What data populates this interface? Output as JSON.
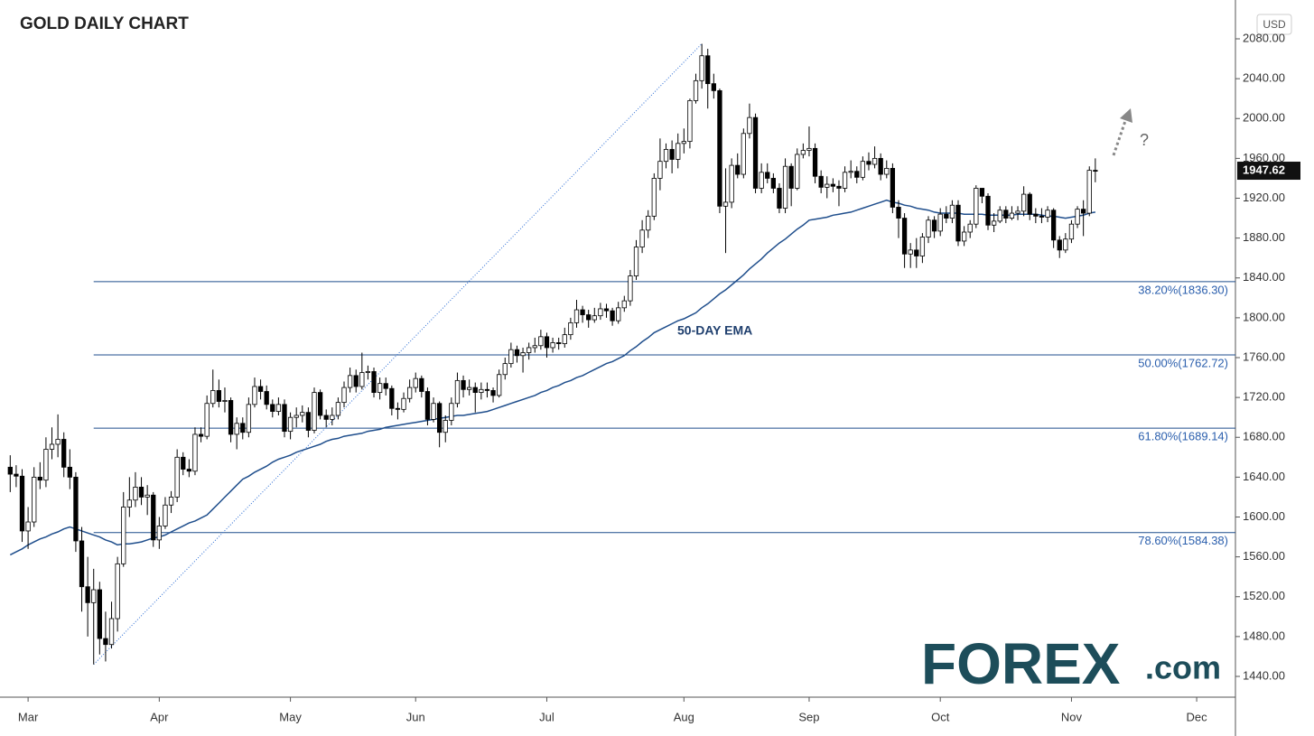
{
  "chart_data": {
    "type": "candlestick",
    "title": "GOLD DAILY CHART",
    "currency": "USD",
    "categories": [
      null,
      null,
      null,
      "Mar",
      null,
      null,
      null,
      null,
      null,
      null,
      null,
      null,
      null,
      null,
      null,
      null,
      null,
      null,
      null,
      null,
      null,
      null,
      null,
      null,
      null,
      "Apr",
      null,
      null,
      null,
      null,
      null,
      null,
      null,
      null,
      null,
      null,
      null,
      null,
      null,
      null,
      null,
      null,
      null,
      null,
      null,
      null,
      null,
      "May",
      null,
      null,
      null,
      null,
      null,
      null,
      null,
      null,
      null,
      null,
      null,
      null,
      null,
      null,
      null,
      null,
      null,
      null,
      null,
      null,
      "Jun",
      null,
      null,
      null,
      null,
      null,
      null,
      null,
      null,
      null,
      null,
      null,
      null,
      null,
      null,
      null,
      null,
      null,
      null,
      null,
      null,
      null,
      "Jul",
      null,
      null,
      null,
      null,
      null,
      null,
      null,
      null,
      null,
      null,
      null,
      null,
      null,
      null,
      null,
      null,
      null,
      null,
      null,
      null,
      null,
      null,
      "Aug",
      null,
      null,
      null,
      null,
      null,
      null,
      null,
      null,
      null,
      null,
      null,
      null,
      null,
      null,
      null,
      null,
      null,
      null,
      null,
      null,
      "Sep",
      null,
      null,
      null,
      null,
      null,
      null,
      null,
      null,
      null,
      null,
      null,
      null,
      null,
      null,
      null,
      null,
      null,
      null,
      null,
      null,
      null,
      "Oct",
      null,
      null,
      null,
      null,
      null,
      null,
      null,
      null,
      null,
      null,
      null,
      null,
      null,
      null,
      null,
      null,
      null,
      null,
      null,
      null,
      null,
      "Nov",
      null,
      null,
      null,
      null,
      null,
      null,
      null,
      null,
      null,
      null,
      null,
      null,
      null,
      null,
      null,
      null,
      null,
      null,
      null,
      null,
      "Dec",
      null,
      null,
      null,
      null,
      null,
      null
    ],
    "open": [
      1650,
      1643,
      1641,
      1586,
      1595,
      1640,
      1637,
      1668,
      1673,
      1678,
      1650,
      1640,
      1576,
      1530,
      1514,
      1527,
      1478,
      1472,
      1498,
      1553,
      1610,
      1617,
      1630,
      1620,
      1622,
      1577,
      1591,
      1612,
      1620,
      1660,
      1648,
      1646,
      1683,
      1681,
      1714,
      1727,
      1716,
      1717,
      1683,
      1694,
      1685,
      1713,
      1731,
      1726,
      1713,
      1706,
      1713,
      1686,
      1700,
      1702,
      1705,
      1687,
      1725,
      1702,
      1698,
      1702,
      1715,
      1730,
      1742,
      1731,
      1745,
      1746,
      1725,
      1734,
      1729,
      1709,
      1708,
      1719,
      1730,
      1739,
      1726,
      1698,
      1714,
      1685,
      1697,
      1714,
      1737,
      1728,
      1730,
      1725,
      1728,
      1727,
      1722,
      1743,
      1754,
      1768,
      1762,
      1765,
      1770,
      1772,
      1781,
      1770,
      1775,
      1774,
      1783,
      1795,
      1808,
      1803,
      1798,
      1802,
      1809,
      1807,
      1797,
      1810,
      1817,
      1842,
      1871,
      1888,
      1902,
      1940,
      1957,
      1969,
      1959,
      1975,
      1977,
      2018,
      2038,
      2063,
      2035,
      2028,
      1912,
      1916,
      1953,
      1944,
      1985,
      2001,
      1930,
      1946,
      1940,
      1930,
      1910,
      1952,
      1930,
      1964,
      1968,
      1970,
      1942,
      1931,
      1934,
      1932,
      1930,
      1946,
      1947,
      1941,
      1957,
      1954,
      1960,
      1944,
      1950,
      1911,
      1900,
      1864,
      1868,
      1862,
      1881,
      1898,
      1887,
      1904,
      1900,
      1913,
      1877,
      1886,
      1894,
      1930,
      1922,
      1893,
      1897,
      1908,
      1900,
      1905,
      1907,
      1924,
      1904,
      1902,
      1901,
      1908,
      1878,
      1868,
      1879,
      1894,
      1909,
      1905,
      1948,
      null,
      null,
      null,
      null,
      null,
      null,
      null,
      null,
      null,
      null,
      null,
      null,
      null,
      null,
      null,
      null,
      null,
      null,
      null,
      null,
      null,
      null,
      null
    ],
    "high": [
      1662,
      1652,
      1648,
      1610,
      1650,
      1655,
      1680,
      1690,
      1703,
      1685,
      1668,
      1645,
      1590,
      1560,
      1548,
      1535,
      1505,
      1515,
      1560,
      1625,
      1640,
      1645,
      1640,
      1632,
      1625,
      1600,
      1620,
      1626,
      1668,
      1665,
      1658,
      1690,
      1690,
      1722,
      1748,
      1738,
      1730,
      1720,
      1700,
      1700,
      1720,
      1740,
      1738,
      1732,
      1718,
      1720,
      1718,
      1705,
      1710,
      1712,
      1710,
      1730,
      1728,
      1708,
      1710,
      1720,
      1736,
      1750,
      1748,
      1765,
      1752,
      1750,
      1740,
      1740,
      1732,
      1715,
      1725,
      1738,
      1745,
      1742,
      1730,
      1720,
      1716,
      1702,
      1720,
      1745,
      1742,
      1738,
      1735,
      1735,
      1735,
      1730,
      1748,
      1760,
      1775,
      1772,
      1770,
      1775,
      1780,
      1788,
      1785,
      1780,
      1780,
      1790,
      1800,
      1818,
      1812,
      1808,
      1810,
      1815,
      1814,
      1810,
      1816,
      1822,
      1848,
      1878,
      1898,
      1908,
      1945,
      1980,
      1975,
      1978,
      1985,
      1990,
      2020,
      2045,
      2075,
      2070,
      2045,
      2030,
      1950,
      1960,
      1965,
      1990,
      2015,
      2005,
      1955,
      1955,
      1945,
      1935,
      1960,
      1955,
      1970,
      1975,
      1992,
      1975,
      1948,
      1942,
      1940,
      1938,
      1952,
      1958,
      1952,
      1962,
      1966,
      1972,
      1965,
      1958,
      1955,
      1918,
      1905,
      1875,
      1880,
      1885,
      1902,
      1902,
      1910,
      1912,
      1918,
      1918,
      1892,
      1898,
      1933,
      1930,
      1925,
      1905,
      1912,
      1912,
      1912,
      1912,
      1932,
      1926,
      1910,
      1910,
      1912,
      1910,
      1882,
      1885,
      1898,
      1912,
      1918,
      1952,
      1960,
      null,
      null,
      null,
      null,
      null,
      null,
      null,
      null,
      null,
      null,
      null,
      null,
      null,
      null,
      null,
      null,
      null,
      null,
      null,
      null,
      null,
      null,
      null
    ],
    "low": [
      1625,
      1630,
      1575,
      1568,
      1590,
      1628,
      1630,
      1658,
      1660,
      1640,
      1628,
      1565,
      1505,
      1480,
      1452,
      1462,
      1455,
      1468,
      1485,
      1550,
      1600,
      1610,
      1612,
      1602,
      1570,
      1568,
      1588,
      1604,
      1615,
      1642,
      1640,
      1642,
      1675,
      1678,
      1710,
      1710,
      1705,
      1675,
      1668,
      1678,
      1680,
      1710,
      1718,
      1708,
      1700,
      1702,
      1680,
      1678,
      1690,
      1695,
      1680,
      1684,
      1698,
      1690,
      1692,
      1698,
      1710,
      1725,
      1725,
      1728,
      1738,
      1720,
      1718,
      1722,
      1702,
      1698,
      1705,
      1715,
      1725,
      1720,
      1692,
      1695,
      1670,
      1675,
      1692,
      1710,
      1720,
      1722,
      1705,
      1718,
      1720,
      1715,
      1720,
      1738,
      1750,
      1755,
      1745,
      1758,
      1765,
      1768,
      1760,
      1765,
      1768,
      1770,
      1778,
      1790,
      1795,
      1790,
      1795,
      1798,
      1800,
      1792,
      1794,
      1806,
      1812,
      1838,
      1865,
      1880,
      1898,
      1928,
      1950,
      1945,
      1950,
      1965,
      1970,
      2015,
      2030,
      2010,
      2020,
      1905,
      1865,
      1910,
      1940,
      1940,
      1980,
      1925,
      1925,
      1935,
      1925,
      1905,
      1905,
      1912,
      1928,
      1960,
      1962,
      1935,
      1925,
      1920,
      1926,
      1912,
      1926,
      1940,
      1935,
      1938,
      1948,
      1950,
      1938,
      1940,
      1905,
      1880,
      1850,
      1850,
      1850,
      1855,
      1875,
      1880,
      1882,
      1895,
      1895,
      1872,
      1872,
      1880,
      1890,
      1915,
      1888,
      1886,
      1895,
      1895,
      1898,
      1898,
      1902,
      1898,
      1895,
      1895,
      1896,
      1870,
      1860,
      1865,
      1875,
      1890,
      1882,
      1902,
      1936,
      null,
      null,
      null,
      null,
      null,
      null,
      null,
      null,
      null,
      null,
      null,
      null,
      null,
      null,
      null,
      null,
      null,
      null,
      null,
      null,
      null,
      null,
      null
    ],
    "close": [
      1643,
      1641,
      1586,
      1595,
      1640,
      1637,
      1668,
      1673,
      1678,
      1650,
      1640,
      1576,
      1530,
      1514,
      1527,
      1478,
      1472,
      1498,
      1553,
      1610,
      1617,
      1630,
      1620,
      1622,
      1577,
      1591,
      1612,
      1620,
      1660,
      1648,
      1646,
      1683,
      1681,
      1714,
      1727,
      1716,
      1717,
      1683,
      1694,
      1685,
      1713,
      1731,
      1726,
      1713,
      1706,
      1713,
      1686,
      1700,
      1702,
      1705,
      1687,
      1725,
      1702,
      1698,
      1702,
      1715,
      1730,
      1742,
      1731,
      1745,
      1746,
      1725,
      1734,
      1729,
      1709,
      1708,
      1719,
      1730,
      1739,
      1726,
      1698,
      1714,
      1685,
      1697,
      1714,
      1737,
      1728,
      1730,
      1725,
      1728,
      1727,
      1722,
      1743,
      1754,
      1768,
      1762,
      1765,
      1770,
      1772,
      1781,
      1770,
      1775,
      1774,
      1783,
      1795,
      1808,
      1803,
      1798,
      1802,
      1809,
      1807,
      1797,
      1810,
      1817,
      1842,
      1871,
      1888,
      1902,
      1940,
      1957,
      1969,
      1959,
      1975,
      1977,
      2018,
      2038,
      2063,
      2035,
      2028,
      1912,
      1916,
      1953,
      1944,
      1985,
      2001,
      1930,
      1946,
      1940,
      1930,
      1910,
      1952,
      1930,
      1964,
      1968,
      1970,
      1942,
      1931,
      1934,
      1932,
      1930,
      1946,
      1947,
      1941,
      1957,
      1954,
      1960,
      1944,
      1950,
      1911,
      1900,
      1864,
      1868,
      1862,
      1881,
      1898,
      1887,
      1904,
      1900,
      1913,
      1877,
      1886,
      1894,
      1930,
      1922,
      1893,
      1897,
      1908,
      1900,
      1905,
      1907,
      1924,
      1904,
      1902,
      1901,
      1908,
      1878,
      1868,
      1879,
      1894,
      1909,
      1905,
      1948,
      1947.62,
      null,
      null,
      null,
      null,
      null,
      null,
      null,
      null,
      null,
      null,
      null,
      null,
      null,
      null,
      null,
      null,
      null,
      null,
      null,
      null,
      null,
      null,
      null
    ],
    "up_color": "#ffffff",
    "down_color": "#000000",
    "ema": {
      "name": "50-DAY EMA",
      "color": "#1f4e8c",
      "values": [
        1562,
        1565,
        1568,
        1572,
        1575,
        1578,
        1580,
        1583,
        1585,
        1588,
        1590,
        1588,
        1586,
        1584,
        1582,
        1580,
        1577,
        1575,
        1572,
        1573,
        1573,
        1574,
        1575,
        1577,
        1579,
        1580,
        1582,
        1585,
        1588,
        1591,
        1594,
        1596,
        1599,
        1602,
        1608,
        1614,
        1620,
        1626,
        1632,
        1638,
        1641,
        1645,
        1648,
        1651,
        1655,
        1658,
        1660,
        1662,
        1665,
        1667,
        1669,
        1671,
        1673,
        1676,
        1678,
        1679,
        1681,
        1682,
        1683,
        1684,
        1686,
        1687,
        1688,
        1690,
        1691,
        1692,
        1693,
        1694,
        1695,
        1696,
        1697,
        1698,
        1699,
        1700,
        1701,
        1702,
        1702,
        1703,
        1704,
        1705,
        1706,
        1708,
        1710,
        1712,
        1714,
        1716,
        1718,
        1720,
        1722,
        1725,
        1727,
        1730,
        1732,
        1735,
        1737,
        1740,
        1742,
        1745,
        1748,
        1751,
        1754,
        1756,
        1759,
        1762,
        1767,
        1771,
        1776,
        1780,
        1785,
        1788,
        1791,
        1794,
        1797,
        1799,
        1802,
        1805,
        1810,
        1814,
        1819,
        1824,
        1828,
        1833,
        1838,
        1843,
        1849,
        1854,
        1859,
        1865,
        1870,
        1875,
        1879,
        1884,
        1889,
        1893,
        1898,
        1899,
        1900,
        1901,
        1903,
        1904,
        1905,
        1906,
        1908,
        1910,
        1912,
        1914,
        1916,
        1918,
        1916,
        1915,
        1913,
        1912,
        1910,
        1909,
        1908,
        1906,
        1905,
        1905,
        1905,
        1905,
        1904,
        1904,
        1904,
        1904,
        1903,
        1903,
        1903,
        1903,
        1903,
        1904,
        1904,
        1904,
        1904,
        1903,
        1902,
        1902,
        1901,
        1900,
        1901,
        1902,
        1903,
        1905,
        1906,
        null,
        null,
        null,
        null,
        null,
        null,
        null,
        null,
        null,
        null,
        null,
        null,
        null,
        null,
        null,
        null,
        null,
        null,
        null,
        null,
        null,
        null,
        null
      ]
    },
    "fib_levels": [
      {
        "value": 1836.3,
        "label": "38.20%(1836.30)"
      },
      {
        "value": 1762.72,
        "label": "50.00%(1762.72)"
      },
      {
        "value": 1689.14,
        "label": "61.80%(1689.14)"
      },
      {
        "value": 1584.38,
        "label": "78.60%(1584.38)"
      }
    ],
    "fib_color": "#1f4e8c",
    "annotation": "?",
    "ylim": [
      1419.15,
      2111.73
    ],
    "yticks": [
      {
        "value": 1440,
        "label": "1440.00"
      },
      {
        "value": 1480,
        "label": "1480.00"
      },
      {
        "value": 1520,
        "label": "1520.00"
      },
      {
        "value": 1560,
        "label": "1560.00"
      },
      {
        "value": 1600,
        "label": "1600.00"
      },
      {
        "value": 1640,
        "label": "1640.00"
      },
      {
        "value": 1680,
        "label": "1680.00"
      },
      {
        "value": 1720,
        "label": "1720.00"
      },
      {
        "value": 1760,
        "label": "1760.00"
      },
      {
        "value": 1800,
        "label": "1800.00"
      },
      {
        "value": 1840,
        "label": "1840.00"
      },
      {
        "value": 1880,
        "label": "1880.00"
      },
      {
        "value": 1920,
        "label": "1920.00"
      },
      {
        "value": 1960,
        "label": "1960.00"
      },
      {
        "value": 2000,
        "label": "2000.00"
      },
      {
        "value": 2040,
        "label": "2040.00"
      },
      {
        "value": 2080,
        "label": "2080.00"
      }
    ],
    "logo_main": "FOREX",
    "logo_suffix": ".com"
  }
}
